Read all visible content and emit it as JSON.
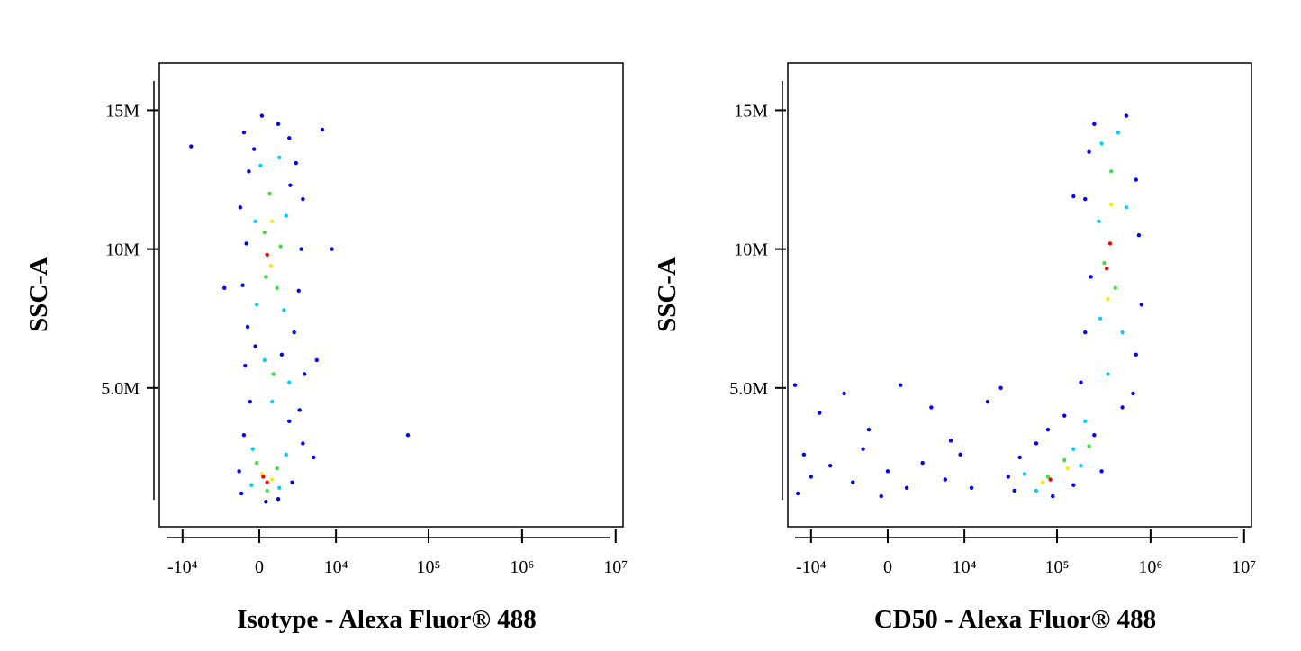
{
  "chart_data": [
    {
      "type": "scatter",
      "x_label": "Isotype - Alexa Fluor® 488",
      "y_label": "SSC-A",
      "x_scale": "biexponential",
      "xlim": [
        -18000,
        12000000
      ],
      "xticks": [
        {
          "value": -10000,
          "label": "-10⁴"
        },
        0,
        {
          "value": 10000,
          "label": "10⁴"
        },
        {
          "value": 100000,
          "label": "10⁵"
        },
        {
          "value": 1000000,
          "label": "10⁶"
        },
        {
          "value": 10000000,
          "label": "10⁷"
        }
      ],
      "ylim": [
        0,
        16.7
      ],
      "yticks": [
        {
          "value": 5,
          "label": "5.0M"
        },
        {
          "value": 10,
          "label": "10M"
        },
        {
          "value": 15,
          "label": "15M"
        }
      ],
      "series": [
        {
          "color": "#0000ff",
          "x": [
            -1200,
            200,
            1500,
            2500,
            -800,
            3200,
            -1500,
            4000,
            -1000,
            3800,
            -1300,
            3500,
            -900,
            3000,
            -1100,
            4200,
            -700,
            3600,
            -1200,
            4000,
            -1600,
            2800,
            -1400,
            1500,
            500,
            -400,
            2600,
            9000,
            -8000,
            -3000,
            6000,
            60000,
            2500,
            -300,
            1800,
            7000,
            5500
          ],
          "y": [
            14.2,
            14.8,
            14.5,
            14.0,
            12.8,
            13.1,
            11.5,
            11.8,
            10.2,
            10.0,
            8.7,
            8.5,
            7.2,
            7.0,
            5.8,
            5.5,
            4.5,
            4.2,
            3.3,
            3.0,
            2.0,
            1.6,
            1.2,
            1.0,
            0.9,
            13.6,
            12.3,
            10.0,
            13.7,
            8.6,
            6.0,
            3.3,
            3.8,
            6.5,
            6.2,
            14.3,
            2.5
          ]
        },
        {
          "color": "#00d0ff",
          "x": [
            100,
            1600,
            -300,
            2200,
            -200,
            2000,
            400,
            2500,
            1000,
            -500,
            2200,
            -600,
            1600
          ],
          "y": [
            13.0,
            13.3,
            11.0,
            11.2,
            8.0,
            7.8,
            6.0,
            5.2,
            4.5,
            2.8,
            2.6,
            1.5,
            1.4
          ]
        },
        {
          "color": "#40e040",
          "x": [
            800,
            400,
            1700,
            500,
            1400,
            1100,
            -200,
            1400,
            600
          ],
          "y": [
            12.0,
            10.6,
            10.1,
            9.0,
            8.6,
            5.5,
            2.3,
            2.1,
            1.3
          ]
        },
        {
          "color": "#f0f000",
          "x": [
            1000,
            900,
            200,
            1000
          ],
          "y": [
            11.0,
            9.4,
            1.9,
            1.7
          ]
        },
        {
          "color": "#ff0000",
          "x": [
            600,
            300,
            600
          ],
          "y": [
            9.8,
            1.8,
            1.6
          ]
        }
      ]
    },
    {
      "type": "scatter",
      "x_label": "CD50 - Alexa Fluor® 488",
      "y_label": "SSC-A",
      "x_scale": "biexponential",
      "xlim": [
        -18000,
        12000000
      ],
      "xticks": [
        {
          "value": -10000,
          "label": "-10⁴"
        },
        0,
        {
          "value": 10000,
          "label": "10⁴"
        },
        {
          "value": 100000,
          "label": "10⁵"
        },
        {
          "value": 1000000,
          "label": "10⁶"
        },
        {
          "value": 10000000,
          "label": "10⁷"
        }
      ],
      "ylim": [
        0,
        16.7
      ],
      "yticks": [
        {
          "value": 5,
          "label": "5.0M"
        },
        {
          "value": 10,
          "label": "10M"
        },
        {
          "value": 15,
          "label": "15M"
        }
      ],
      "series": [
        {
          "color": "#0000ff",
          "x": [
            250000,
            550000,
            220000,
            700000,
            200000,
            750000,
            230000,
            800000,
            200000,
            700000,
            180000,
            650000,
            120000,
            500000,
            80000,
            250000,
            40000,
            30000,
            35000,
            90000,
            150000,
            300000,
            60000,
            -15000,
            -8000,
            -4000,
            -1500,
            1000,
            4000,
            -12000,
            -10000,
            -6000,
            -3000,
            -2000,
            0,
            1500,
            3000,
            6000,
            9000,
            12000,
            -14000,
            -500,
            7000,
            18000,
            25000,
            150000
          ],
          "y": [
            14.5,
            14.8,
            13.5,
            12.5,
            11.8,
            10.5,
            9.0,
            8.0,
            7.0,
            6.2,
            5.2,
            4.8,
            4.0,
            4.3,
            3.5,
            3.3,
            2.5,
            1.8,
            1.3,
            1.1,
            1.5,
            2.0,
            3.0,
            5.1,
            4.1,
            4.8,
            3.5,
            5.1,
            4.3,
            2.6,
            1.8,
            2.2,
            1.6,
            2.8,
            2.0,
            1.4,
            2.3,
            1.7,
            2.6,
            1.4,
            1.2,
            1.1,
            3.1,
            4.5,
            5.0,
            11.9
          ]
        },
        {
          "color": "#00d0ff",
          "x": [
            300000,
            450000,
            280000,
            550000,
            290000,
            500000,
            350000,
            200000,
            150000,
            45000,
            60000,
            180000
          ],
          "y": [
            13.8,
            14.2,
            11.0,
            11.5,
            7.5,
            7.0,
            5.5,
            3.8,
            2.8,
            1.9,
            1.3,
            2.2
          ]
        },
        {
          "color": "#40e040",
          "x": [
            380000,
            320000,
            420000,
            120000,
            80000,
            220000
          ],
          "y": [
            12.8,
            9.5,
            8.6,
            2.4,
            1.8,
            2.9
          ]
        },
        {
          "color": "#f0f000",
          "x": [
            380000,
            350000,
            70000,
            130000
          ],
          "y": [
            11.6,
            8.2,
            1.6,
            2.1
          ]
        },
        {
          "color": "#ff0000",
          "x": [
            370000,
            340000,
            85000
          ],
          "y": [
            10.2,
            9.3,
            1.7
          ]
        }
      ]
    }
  ]
}
